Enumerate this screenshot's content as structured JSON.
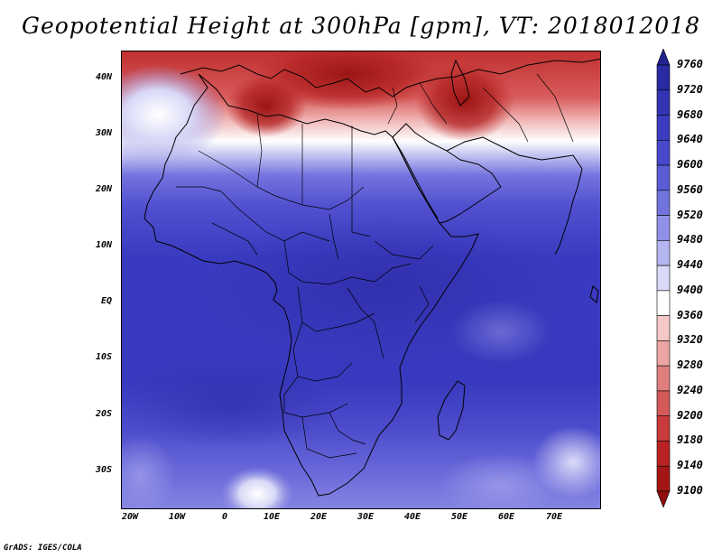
{
  "title": "Geopotential Height at 300hPa [gpm], VT: 2018012018",
  "credit": "GrADS: IGES/COLA",
  "map": {
    "region": "Africa and Middle East",
    "variable": "Geopotential Height",
    "level": "300hPa",
    "units": "gpm",
    "valid_time": "2018012018",
    "lat_labels": [
      "40N",
      "30N",
      "20N",
      "10N",
      "EQ",
      "10S",
      "20S",
      "30S"
    ],
    "lat_values": [
      40,
      30,
      20,
      10,
      0,
      -10,
      -20,
      -30
    ],
    "lon_labels": [
      "20W",
      "10W",
      "0",
      "10E",
      "20E",
      "30E",
      "40E",
      "50E",
      "60E",
      "70E"
    ],
    "lon_values": [
      -20,
      -10,
      0,
      10,
      20,
      30,
      40,
      50,
      60,
      70
    ],
    "lat_range": [
      -36.5,
      45.5
    ],
    "lon_range": [
      -21,
      80
    ]
  },
  "colorbar": {
    "labels": [
      "9760",
      "9720",
      "9680",
      "9640",
      "9600",
      "9560",
      "9520",
      "9480",
      "9440",
      "9400",
      "9360",
      "9320",
      "9280",
      "9240",
      "9200",
      "9180",
      "9140",
      "9100"
    ],
    "colors": [
      "#23238f",
      "#2a2aa3",
      "#3333b4",
      "#3b3bc2",
      "#4848cc",
      "#5b5bd6",
      "#7373df",
      "#9090e8",
      "#b5b5f0",
      "#dadaf8",
      "#ffffff",
      "#f5c8c8",
      "#eca4a4",
      "#e07e7e",
      "#d45a5a",
      "#c93b3b",
      "#b82222",
      "#a51515",
      "#8f0e0e"
    ]
  }
}
